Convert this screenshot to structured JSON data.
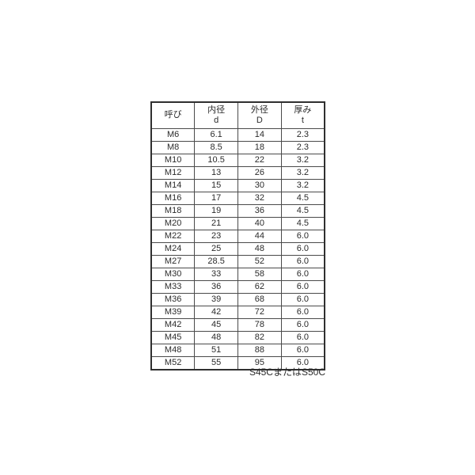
{
  "colors": {
    "background": "#ffffff",
    "outer_border": "#2f2f2f",
    "inner_border": "#4a4a4a",
    "text": "#2b2b2b"
  },
  "table": {
    "columns": [
      {
        "label": "呼び",
        "sub": ""
      },
      {
        "label": "内径",
        "sub": "d"
      },
      {
        "label": "外径",
        "sub": "D"
      },
      {
        "label": "厚み",
        "sub": "t"
      }
    ],
    "rows": [
      [
        "M6",
        "6.1",
        "14",
        "2.3"
      ],
      [
        "M8",
        "8.5",
        "18",
        "2.3"
      ],
      [
        "M10",
        "10.5",
        "22",
        "3.2"
      ],
      [
        "M12",
        "13",
        "26",
        "3.2"
      ],
      [
        "M14",
        "15",
        "30",
        "3.2"
      ],
      [
        "M16",
        "17",
        "32",
        "4.5"
      ],
      [
        "M18",
        "19",
        "36",
        "4.5"
      ],
      [
        "M20",
        "21",
        "40",
        "4.5"
      ],
      [
        "M22",
        "23",
        "44",
        "6.0"
      ],
      [
        "M24",
        "25",
        "48",
        "6.0"
      ],
      [
        "M27",
        "28.5",
        "52",
        "6.0"
      ],
      [
        "M30",
        "33",
        "58",
        "6.0"
      ],
      [
        "M33",
        "36",
        "62",
        "6.0"
      ],
      [
        "M36",
        "39",
        "68",
        "6.0"
      ],
      [
        "M39",
        "42",
        "72",
        "6.0"
      ],
      [
        "M42",
        "45",
        "78",
        "6.0"
      ],
      [
        "M45",
        "48",
        "82",
        "6.0"
      ],
      [
        "M48",
        "51",
        "88",
        "6.0"
      ],
      [
        "M52",
        "55",
        "95",
        "6.0"
      ]
    ]
  },
  "footnote": "S45CまたはS50C"
}
